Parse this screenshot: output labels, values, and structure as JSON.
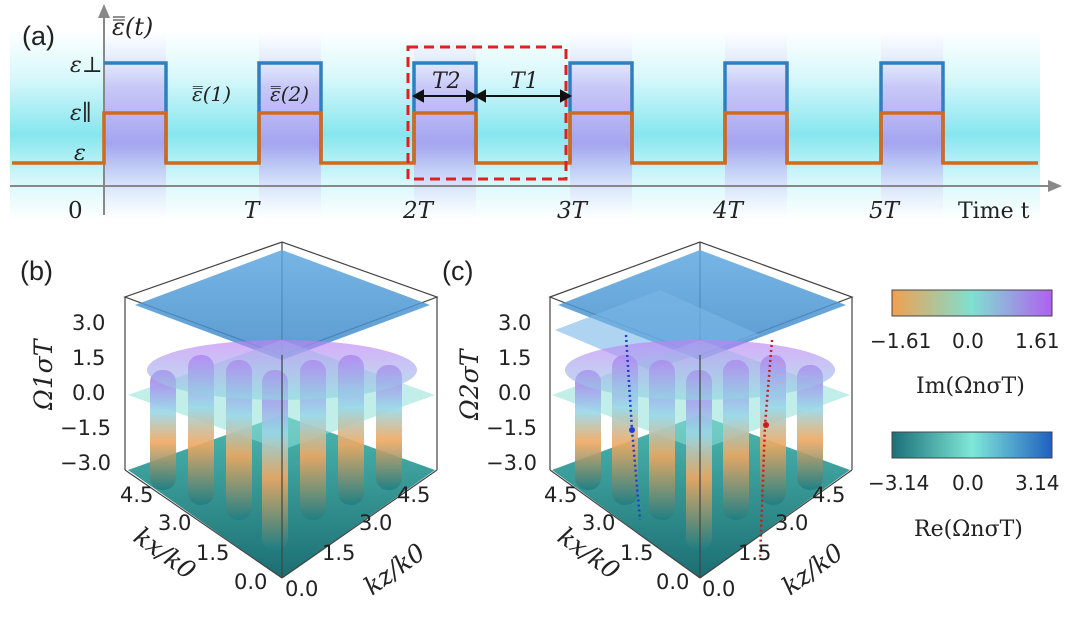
{
  "panel_a": {
    "label": "(a)",
    "y_label": "ε̿(t)",
    "levels": {
      "perp": "ε⊥",
      "par": "ε∥",
      "base": "ε"
    },
    "region_labels": {
      "eps1": "ε̿(1)",
      "eps2": "ε̿(2)"
    },
    "interval_labels": {
      "t2": "T2",
      "t1": "T1"
    },
    "time_ticks": [
      "0",
      "T",
      "2T",
      "3T",
      "4T",
      "5T"
    ],
    "x_label": "Time t",
    "colors": {
      "perp_line": "#2f7fc0",
      "par_line": "#d2691e",
      "highlight_box": "#e02020"
    }
  },
  "panel_b": {
    "label": "(b)",
    "z_title": "Ω1σT",
    "z_ticks": [
      "3.0",
      "1.5",
      "0.0",
      "−1.5",
      "−3.0"
    ],
    "kx_title": "kx/k0",
    "kx_ticks": [
      "4.5",
      "3.0",
      "1.5",
      "0.0"
    ],
    "kz_title": "kz/k0",
    "kz_ticks": [
      "4.5",
      "3.0",
      "1.5",
      "0.0"
    ]
  },
  "panel_c": {
    "label": "(c)",
    "z_title": "Ω2σT",
    "z_ticks": [
      "3.0",
      "1.5",
      "0.0",
      "−1.5",
      "−3.0"
    ],
    "kx_title": "kx/k0",
    "kx_ticks": [
      "4.5",
      "3.0",
      "1.5",
      "0.0"
    ],
    "kz_title": "kz/k0",
    "kz_ticks": [
      "4.5",
      "3.0",
      "1.5",
      "0.0"
    ]
  },
  "colorbar_im": {
    "ticks": [
      "−1.61",
      "0.0",
      "1.61"
    ],
    "label": "Im(ΩnσT)",
    "colors": [
      "#f0a050",
      "#7fe0d0",
      "#b060f0"
    ]
  },
  "colorbar_re": {
    "ticks": [
      "−3.14",
      "0.0",
      "3.14"
    ],
    "label": "Re(ΩnσT)",
    "colors": [
      "#1a6f78",
      "#7fe8d8",
      "#2060c0"
    ]
  }
}
